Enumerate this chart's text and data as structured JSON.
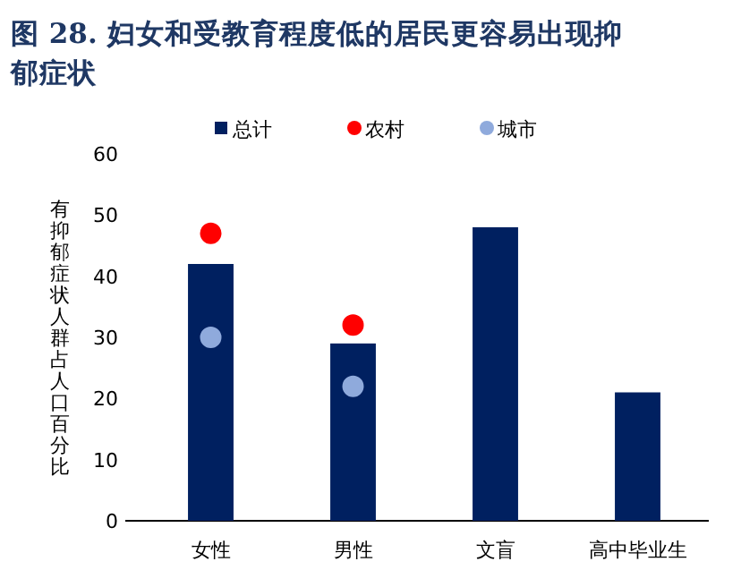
{
  "chart_data": {
    "type": "bar",
    "title": "图 28. 妇女和受教育程度低的居民更容易出现抑郁症状",
    "ylabel": "有抑郁症状人群占人口百分比",
    "categories": [
      "女性",
      "男性",
      "文盲",
      "高中毕业生"
    ],
    "series": [
      {
        "name": "总计",
        "color": "#002060",
        "values": [
          42,
          29,
          48,
          21
        ]
      },
      {
        "name": "农村",
        "type": "scatter",
        "color": "#ff0000",
        "x": [
          "女性",
          "男性"
        ],
        "values": [
          47,
          32
        ]
      },
      {
        "name": "城市",
        "type": "scatter",
        "color": "#8faadc",
        "x": [
          "女性",
          "男性"
        ],
        "values": [
          30,
          22
        ]
      }
    ],
    "ylim": [
      0,
      60
    ],
    "yticks": [
      0,
      10,
      20,
      30,
      40,
      50,
      60
    ],
    "legend": "top",
    "grid": false,
    "marker": "circle"
  }
}
